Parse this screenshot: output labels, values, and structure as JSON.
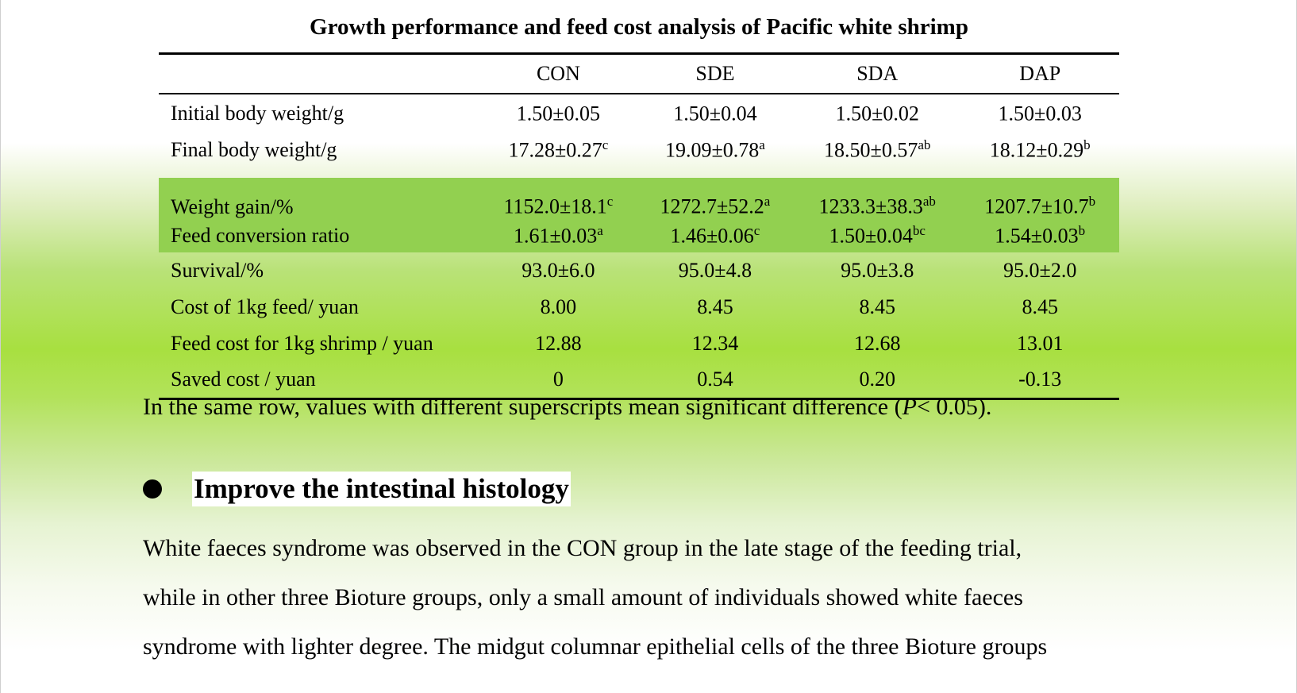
{
  "table": {
    "title": "Growth performance and feed cost analysis of Pacific white shrimp",
    "columns": [
      "",
      "CON",
      "SDE",
      "SDA",
      "DAP"
    ],
    "rows": [
      {
        "label": "Initial body weight/g",
        "cells": [
          {
            "v": "1.50±0.05",
            "s": ""
          },
          {
            "v": "1.50±0.04",
            "s": ""
          },
          {
            "v": "1.50±0.02",
            "s": ""
          },
          {
            "v": "1.50±0.03",
            "s": ""
          }
        ]
      },
      {
        "label": "Final body weight/g",
        "cells": [
          {
            "v": "17.28±0.27",
            "s": "c"
          },
          {
            "v": "19.09±0.78",
            "s": "a"
          },
          {
            "v": "18.50±0.57",
            "s": "ab"
          },
          {
            "v": "18.12±0.29",
            "s": "b"
          }
        ]
      },
      {
        "label": "Weight gain/%",
        "cells": [
          {
            "v": "1152.0±18.1",
            "s": "c"
          },
          {
            "v": "1272.7±52.2",
            "s": "a"
          },
          {
            "v": "1233.3±38.3",
            "s": "ab"
          },
          {
            "v": "1207.7±10.7",
            "s": "b"
          }
        ]
      },
      {
        "label": "Feed conversion ratio",
        "cells": [
          {
            "v": "1.61±0.03",
            "s": "a"
          },
          {
            "v": "1.46±0.06",
            "s": "c"
          },
          {
            "v": "1.50±0.04",
            "s": "bc"
          },
          {
            "v": "1.54±0.03",
            "s": "b"
          }
        ]
      },
      {
        "label": "Survival/%",
        "cells": [
          {
            "v": "93.0±6.0",
            "s": ""
          },
          {
            "v": "95.0±4.8",
            "s": ""
          },
          {
            "v": "95.0±3.8",
            "s": ""
          },
          {
            "v": "95.0±2.0",
            "s": ""
          }
        ]
      },
      {
        "label": "Cost of 1kg feed/ yuan",
        "cells": [
          {
            "v": "8.00",
            "s": ""
          },
          {
            "v": "8.45",
            "s": ""
          },
          {
            "v": "8.45",
            "s": ""
          },
          {
            "v": "8.45",
            "s": ""
          }
        ]
      },
      {
        "label": "Feed cost for 1kg shrimp / yuan",
        "cells": [
          {
            "v": "12.88",
            "s": ""
          },
          {
            "v": "12.34",
            "s": ""
          },
          {
            "v": "12.68",
            "s": ""
          },
          {
            "v": "13.01",
            "s": ""
          }
        ]
      },
      {
        "label": "Saved cost / yuan",
        "cells": [
          {
            "v": "0",
            "s": ""
          },
          {
            "v": "0.54",
            "s": ""
          },
          {
            "v": "0.20",
            "s": ""
          },
          {
            "v": "-0.13",
            "s": ""
          }
        ]
      }
    ],
    "highlight_color": "#92d050"
  },
  "note": {
    "before": "In the same row, values with different superscripts mean significant difference (",
    "italic": "P",
    "after": "< 0.05)."
  },
  "section": {
    "heading": "Improve the intestinal histology",
    "lines": [
      "White faeces syndrome was observed in the CON group in the late stage of the feeding trial,",
      "while in other three Bioture groups, only a small amount of individuals showed white faeces",
      "syndrome with lighter degree. The midgut columnar epithelial cells of the three Bioture groups"
    ]
  }
}
